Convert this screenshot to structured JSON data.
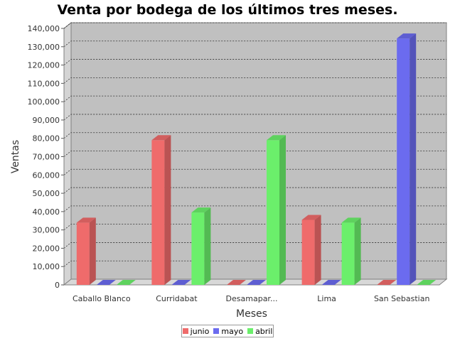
{
  "chart_data": {
    "type": "bar",
    "title": "Venta por bodega de los últimos tres meses.",
    "xlabel": "Meses",
    "ylabel": "Ventas",
    "categories": [
      "Caballo Blanco",
      "Curridabat",
      "Desamapar...",
      "Lima",
      "San Sebastian"
    ],
    "series": [
      {
        "name": "junio",
        "color": "#ef6b6b",
        "values": [
          34000,
          79000,
          0,
          35500,
          0
        ]
      },
      {
        "name": "mayo",
        "color": "#6b6bef",
        "values": [
          0,
          0,
          0,
          0,
          134500
        ]
      },
      {
        "name": "abril",
        "color": "#6bef6b",
        "values": [
          0,
          39500,
          79000,
          34000,
          0
        ]
      }
    ],
    "ylim": [
      0,
      140000
    ],
    "yticks": [
      "0",
      "10,000",
      "20,000",
      "30,000",
      "40,000",
      "50,000",
      "60,000",
      "70,000",
      "80,000",
      "90,000",
      "100,000",
      "110,000",
      "120,000",
      "130,000",
      "140,000"
    ],
    "grid": true,
    "legend_position": "bottom",
    "plot_background": "#c0c0c0"
  }
}
